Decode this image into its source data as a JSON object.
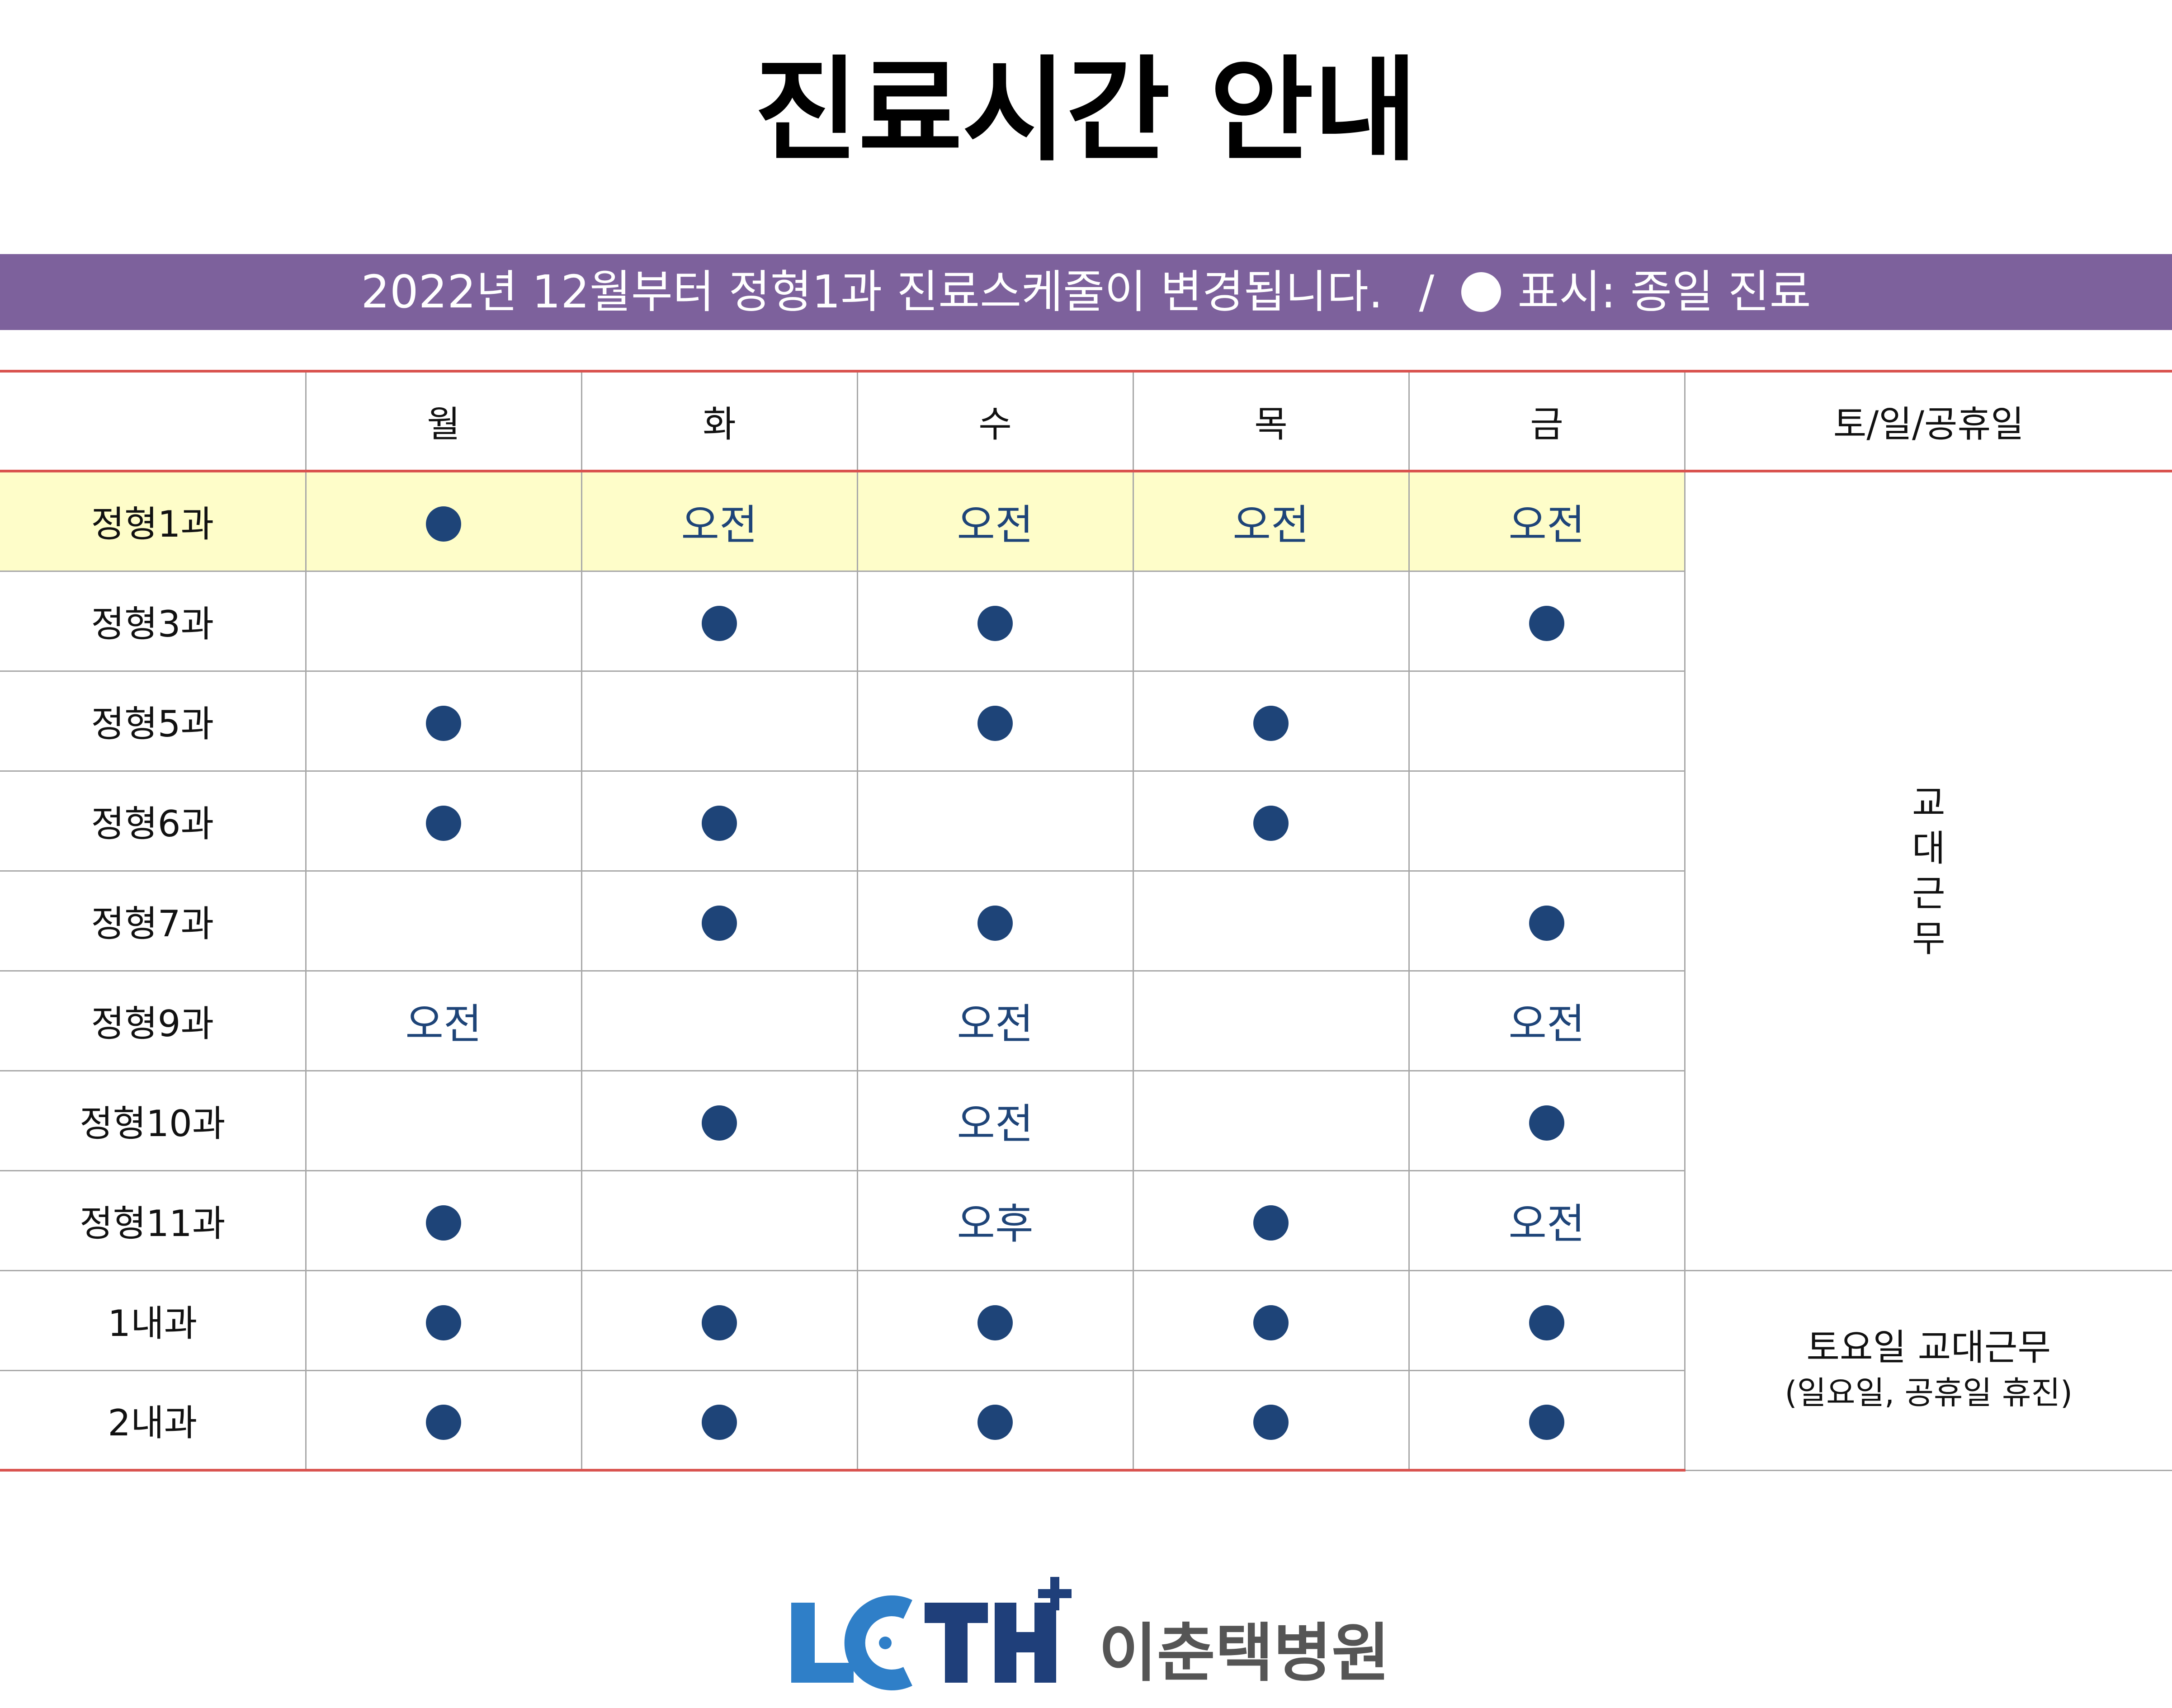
{
  "title": "진료시간 안내",
  "notice": {
    "text": "2022년 12월부터 정형1과 진료스케줄이 변경됩니다.",
    "separator": "/",
    "legend_label": "표시: 종일 진료"
  },
  "table": {
    "headers": [
      "",
      "월",
      "화",
      "수",
      "목",
      "금",
      "토/일/공휴일"
    ],
    "legend": {
      "dot": "종일 진료",
      "am": "오전",
      "pm": "오후"
    },
    "rows": [
      {
        "dept": "정형1과",
        "mon": "dot",
        "tue": "오전",
        "wed": "오전",
        "thu": "오전",
        "fri": "오전",
        "highlighted": true
      },
      {
        "dept": "정형3과",
        "mon": "",
        "tue": "dot",
        "wed": "dot",
        "thu": "",
        "fri": "dot"
      },
      {
        "dept": "정형5과",
        "mon": "dot",
        "tue": "",
        "wed": "dot",
        "thu": "dot",
        "fri": ""
      },
      {
        "dept": "정형6과",
        "mon": "dot",
        "tue": "dot",
        "wed": "",
        "thu": "dot",
        "fri": ""
      },
      {
        "dept": "정형7과",
        "mon": "",
        "tue": "dot",
        "wed": "dot",
        "thu": "",
        "fri": "dot"
      },
      {
        "dept": "정형9과",
        "mon": "오전",
        "tue": "",
        "wed": "오전",
        "thu": "",
        "fri": "오전"
      },
      {
        "dept": "정형10과",
        "mon": "",
        "tue": "dot",
        "wed": "오전",
        "thu": "",
        "fri": "dot"
      },
      {
        "dept": "정형11과",
        "mon": "dot",
        "tue": "",
        "wed": "오후",
        "thu": "dot",
        "fri": "오전"
      },
      {
        "dept": "1내과",
        "mon": "dot",
        "tue": "dot",
        "wed": "dot",
        "thu": "dot",
        "fri": "dot"
      },
      {
        "dept": "2내과",
        "mon": "dot",
        "tue": "dot",
        "wed": "dot",
        "thu": "dot",
        "fri": "dot"
      }
    ],
    "weekend_ortho": [
      "교",
      "대",
      "근",
      "무"
    ],
    "weekend_internal": {
      "line1": "토요일 교대근무",
      "line2": "(일요일, 공휴일 휴진)"
    }
  },
  "footer": {
    "logo_text": "LCTH",
    "hospital_name": "이춘택병원"
  },
  "colors": {
    "banner": "#7d619c",
    "dot": "#1e4478",
    "highlight": "#fefdc9",
    "rule": "#d9534f",
    "logo_blue": "#2f7fc8",
    "logo_navy": "#1f3f7a"
  },
  "icons": {
    "legend": "filled-circle-icon",
    "full_day": "filled-circle-icon",
    "logo_plus": "plus-icon"
  }
}
